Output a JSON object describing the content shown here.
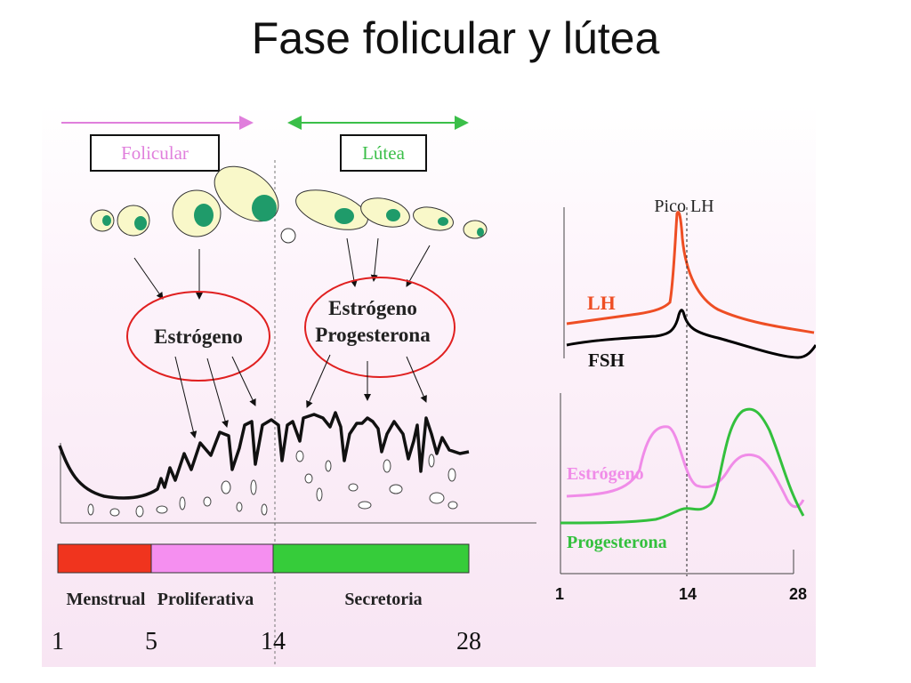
{
  "title": "Fase folicular y lútea",
  "labels": {
    "folicular": "Folicular",
    "lutea": "Lútea",
    "estrogeno": "Estrógeno",
    "progesterona": "Progesterona",
    "pico_lh": "Pico LH",
    "lh": "LH",
    "fsh": "FSH"
  },
  "phases": [
    {
      "name": "Menstrual",
      "start_day": 1,
      "end_day": 5,
      "color": "#f0341e"
    },
    {
      "name": "Proliferativa",
      "start_day": 5,
      "end_day": 14,
      "color": "#f58ff0"
    },
    {
      "name": "Secretoria",
      "start_day": 14,
      "end_day": 28,
      "color": "#36cc3a"
    }
  ],
  "day_ticks": [
    "1",
    "5",
    "14",
    "28"
  ],
  "hormone_axis_ticks": [
    "1",
    "14",
    "28"
  ],
  "colors": {
    "lh": "#ee4e24",
    "fsh": "#000000",
    "estrogeno": "#f08ce8",
    "progesterona": "#33c03d",
    "hormone_circles": "#e02020",
    "follicle_fill": "#f9f8c9",
    "oocyte": "#1f9b6a"
  }
}
